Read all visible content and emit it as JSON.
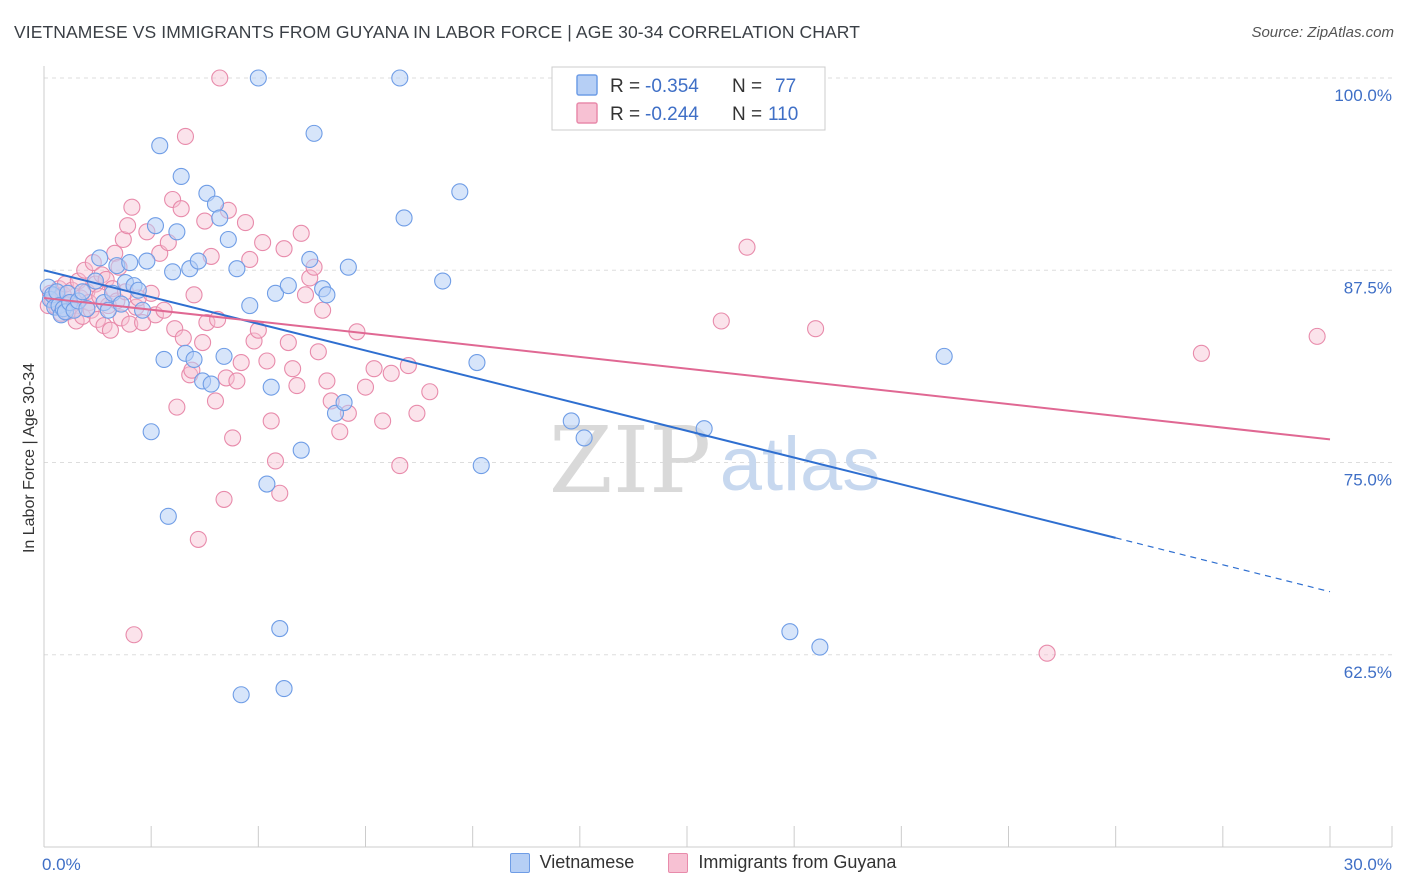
{
  "title": "VIETNAMESE VS IMMIGRANTS FROM GUYANA IN LABOR FORCE | AGE 30-34 CORRELATION CHART",
  "source": "Source: ZipAtlas.com",
  "watermark": {
    "zip": "ZIP",
    "atlas": "atlas"
  },
  "legend": {
    "r_label": "R =",
    "n_label": "N =",
    "entries": [
      {
        "name": "Vietnamese",
        "r": "-0.354",
        "n": "77",
        "color": "#6f9de6",
        "fill": "#b6cff5"
      },
      {
        "name": "Immigrants from Guyana",
        "r": "-0.244",
        "n": "110",
        "color": "#e88bab",
        "fill": "#f7c1d3"
      }
    ]
  },
  "colors": {
    "blue_line": "#2f6fd0",
    "pink_line": "#e06893",
    "axis_text": "#3f6fc6",
    "grid": "#dddddd"
  },
  "chart_data": {
    "type": "scatter",
    "title": "VIETNAMESE VS IMMIGRANTS FROM GUYANA IN LABOR FORCE | AGE 30-34 CORRELATION CHART",
    "xlabel": "",
    "ylabel": "In Labor Force | Age 30-34",
    "xlim": [
      0,
      30
    ],
    "ylim": [
      50,
      100
    ],
    "x_tick_labels": [
      {
        "value": 0,
        "label": "0.0%"
      },
      {
        "value": 30,
        "label": "30.0%"
      }
    ],
    "y_tick_labels": [
      {
        "value": 100,
        "label": "100.0%"
      },
      {
        "value": 87.5,
        "label": "87.5%"
      },
      {
        "value": 75,
        "label": "75.0%"
      },
      {
        "value": 62.5,
        "label": "62.5%"
      }
    ],
    "grid": true,
    "legend_position": "top-center",
    "series": [
      {
        "name": "Vietnamese",
        "trend": {
          "x": [
            0,
            25
          ],
          "y": [
            87.5,
            70.1
          ],
          "dashed_to": [
            30,
            66.6
          ]
        },
        "points": [
          [
            0.1,
            86.4
          ],
          [
            0.15,
            85.6
          ],
          [
            0.2,
            85.9
          ],
          [
            0.25,
            85.1
          ],
          [
            0.3,
            86.1
          ],
          [
            0.35,
            85.2
          ],
          [
            0.4,
            84.6
          ],
          [
            0.45,
            85.0
          ],
          [
            0.5,
            84.8
          ],
          [
            0.55,
            86.0
          ],
          [
            0.6,
            85.4
          ],
          [
            0.7,
            84.9
          ],
          [
            0.8,
            85.5
          ],
          [
            0.9,
            86.1
          ],
          [
            1.0,
            85.0
          ],
          [
            1.2,
            86.8
          ],
          [
            1.3,
            88.3
          ],
          [
            1.4,
            85.4
          ],
          [
            1.5,
            84.9
          ],
          [
            1.6,
            86.0
          ],
          [
            1.7,
            87.8
          ],
          [
            1.8,
            85.3
          ],
          [
            1.9,
            86.7
          ],
          [
            2.0,
            88.0
          ],
          [
            2.1,
            86.5
          ],
          [
            2.2,
            86.2
          ],
          [
            2.3,
            84.9
          ],
          [
            2.4,
            88.1
          ],
          [
            2.5,
            77.0
          ],
          [
            2.6,
            90.4
          ],
          [
            2.7,
            95.6
          ],
          [
            2.8,
            81.7
          ],
          [
            2.9,
            71.5
          ],
          [
            3.0,
            87.4
          ],
          [
            3.1,
            90.0
          ],
          [
            3.2,
            93.6
          ],
          [
            3.3,
            82.1
          ],
          [
            3.4,
            87.6
          ],
          [
            3.5,
            81.7
          ],
          [
            3.6,
            88.1
          ],
          [
            3.7,
            80.3
          ],
          [
            3.8,
            92.5
          ],
          [
            3.9,
            80.1
          ],
          [
            4.0,
            91.8
          ],
          [
            4.1,
            90.9
          ],
          [
            4.2,
            81.9
          ],
          [
            4.3,
            89.5
          ],
          [
            4.5,
            87.6
          ],
          [
            4.6,
            59.9
          ],
          [
            4.8,
            85.2
          ],
          [
            5.0,
            100.0
          ],
          [
            5.2,
            73.6
          ],
          [
            5.3,
            79.9
          ],
          [
            5.4,
            86.0
          ],
          [
            5.5,
            64.2
          ],
          [
            5.6,
            60.3
          ],
          [
            5.7,
            86.5
          ],
          [
            6.0,
            75.8
          ],
          [
            6.2,
            88.2
          ],
          [
            6.3,
            96.4
          ],
          [
            6.5,
            86.3
          ],
          [
            6.6,
            85.9
          ],
          [
            6.8,
            78.2
          ],
          [
            7.0,
            78.9
          ],
          [
            7.1,
            87.7
          ],
          [
            8.3,
            100.0
          ],
          [
            8.4,
            90.9
          ],
          [
            9.3,
            86.8
          ],
          [
            9.7,
            92.6
          ],
          [
            10.1,
            81.5
          ],
          [
            10.2,
            74.8
          ],
          [
            12.3,
            77.7
          ],
          [
            12.6,
            76.6
          ],
          [
            15.4,
            77.2
          ],
          [
            17.4,
            64.0
          ],
          [
            18.1,
            63.0
          ],
          [
            21.0,
            81.9
          ]
        ]
      },
      {
        "name": "Immigrants from Guyana",
        "trend": {
          "x": [
            0,
            30
          ],
          "y": [
            85.7,
            76.5
          ]
        },
        "points": [
          [
            0.1,
            85.2
          ],
          [
            0.15,
            86.0
          ],
          [
            0.2,
            85.5
          ],
          [
            0.25,
            85.8
          ],
          [
            0.3,
            85.1
          ],
          [
            0.35,
            86.3
          ],
          [
            0.4,
            84.7
          ],
          [
            0.45,
            85.9
          ],
          [
            0.5,
            86.6
          ],
          [
            0.55,
            84.8
          ],
          [
            0.6,
            85.3
          ],
          [
            0.65,
            86.2
          ],
          [
            0.7,
            85.0
          ],
          [
            0.75,
            84.2
          ],
          [
            0.8,
            86.8
          ],
          [
            0.85,
            85.7
          ],
          [
            0.9,
            84.5
          ],
          [
            0.95,
            87.5
          ],
          [
            1.0,
            86.1
          ],
          [
            1.05,
            85.4
          ],
          [
            1.1,
            84.9
          ],
          [
            1.15,
            88.0
          ],
          [
            1.2,
            86.6
          ],
          [
            1.25,
            84.3
          ],
          [
            1.3,
            85.8
          ],
          [
            1.35,
            87.2
          ],
          [
            1.4,
            83.9
          ],
          [
            1.45,
            86.9
          ],
          [
            1.5,
            85.2
          ],
          [
            1.55,
            83.6
          ],
          [
            1.6,
            86.3
          ],
          [
            1.65,
            88.6
          ],
          [
            1.7,
            85.5
          ],
          [
            1.75,
            87.7
          ],
          [
            1.8,
            84.4
          ],
          [
            1.85,
            89.5
          ],
          [
            1.9,
            86.1
          ],
          [
            1.95,
            90.4
          ],
          [
            2.0,
            84.0
          ],
          [
            2.05,
            91.6
          ],
          [
            2.1,
            63.8
          ],
          [
            2.15,
            85.1
          ],
          [
            2.2,
            85.7
          ],
          [
            2.3,
            84.1
          ],
          [
            2.4,
            90.0
          ],
          [
            2.5,
            86.0
          ],
          [
            2.6,
            84.6
          ],
          [
            2.7,
            88.6
          ],
          [
            2.8,
            84.9
          ],
          [
            2.9,
            89.3
          ],
          [
            3.0,
            92.1
          ],
          [
            3.05,
            83.7
          ],
          [
            3.1,
            78.6
          ],
          [
            3.2,
            91.5
          ],
          [
            3.25,
            83.1
          ],
          [
            3.3,
            96.2
          ],
          [
            3.4,
            80.7
          ],
          [
            3.45,
            81.0
          ],
          [
            3.5,
            85.9
          ],
          [
            3.6,
            70.0
          ],
          [
            3.7,
            82.8
          ],
          [
            3.75,
            90.7
          ],
          [
            3.8,
            84.1
          ],
          [
            3.9,
            88.4
          ],
          [
            4.0,
            79.0
          ],
          [
            4.05,
            84.3
          ],
          [
            4.1,
            100.0
          ],
          [
            4.2,
            72.6
          ],
          [
            4.25,
            80.5
          ],
          [
            4.3,
            91.4
          ],
          [
            4.4,
            76.6
          ],
          [
            4.5,
            80.3
          ],
          [
            4.6,
            81.5
          ],
          [
            4.7,
            90.6
          ],
          [
            4.8,
            88.2
          ],
          [
            4.9,
            82.9
          ],
          [
            5.0,
            83.6
          ],
          [
            5.1,
            89.3
          ],
          [
            5.2,
            81.6
          ],
          [
            5.3,
            77.7
          ],
          [
            5.4,
            75.1
          ],
          [
            5.5,
            73.0
          ],
          [
            5.6,
            88.9
          ],
          [
            5.7,
            82.8
          ],
          [
            5.8,
            81.1
          ],
          [
            5.9,
            80.0
          ],
          [
            6.0,
            89.9
          ],
          [
            6.1,
            85.9
          ],
          [
            6.2,
            87.0
          ],
          [
            6.3,
            87.7
          ],
          [
            6.4,
            82.2
          ],
          [
            6.5,
            84.9
          ],
          [
            6.6,
            80.3
          ],
          [
            6.7,
            79.0
          ],
          [
            6.9,
            77.0
          ],
          [
            7.1,
            78.2
          ],
          [
            7.3,
            83.5
          ],
          [
            7.5,
            79.9
          ],
          [
            7.7,
            81.1
          ],
          [
            7.9,
            77.7
          ],
          [
            8.1,
            80.8
          ],
          [
            8.3,
            74.8
          ],
          [
            8.5,
            81.3
          ],
          [
            8.7,
            78.2
          ],
          [
            9.0,
            79.6
          ],
          [
            15.8,
            84.2
          ],
          [
            16.4,
            89.0
          ],
          [
            18.0,
            83.7
          ],
          [
            23.4,
            62.6
          ],
          [
            27.0,
            82.1
          ],
          [
            29.7,
            83.2
          ]
        ]
      }
    ]
  }
}
